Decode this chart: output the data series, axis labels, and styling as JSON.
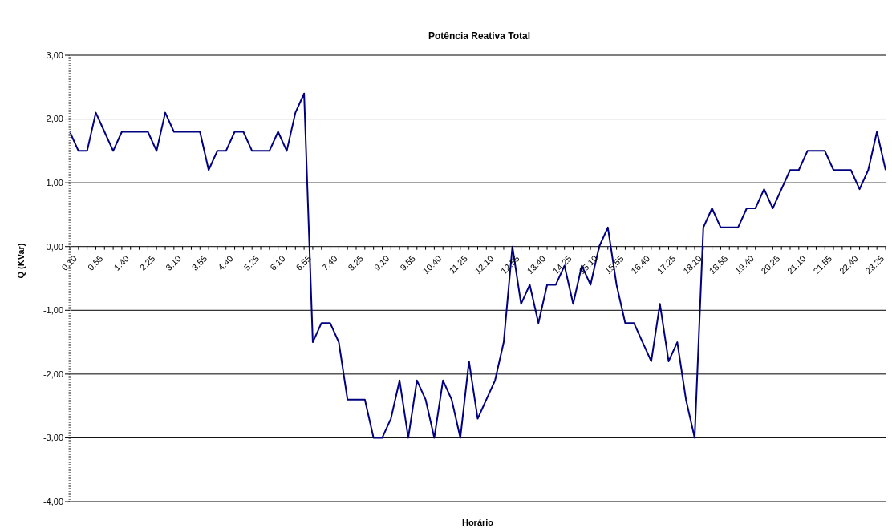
{
  "chart_data": {
    "type": "line",
    "title": "Potência Reativa Total",
    "xlabel": "Horário",
    "ylabel": "Q (KVar)",
    "categories": [
      "0:10",
      null,
      null,
      "0:55",
      null,
      null,
      "1:40",
      null,
      null,
      "2:25",
      null,
      null,
      "3:10",
      null,
      null,
      "3:55",
      null,
      null,
      "4:40",
      null,
      null,
      "5:25",
      null,
      null,
      "6:10",
      null,
      null,
      "6:55",
      null,
      null,
      "7:40",
      null,
      null,
      "8:25",
      null,
      null,
      "9:10",
      null,
      null,
      "9:55",
      null,
      null,
      "10:40",
      null,
      null,
      "11:25",
      null,
      null,
      "12:10",
      null,
      null,
      "12:55",
      null,
      null,
      "13:40",
      null,
      null,
      "14:25",
      null,
      null,
      "15:10",
      null,
      null,
      "15:55",
      null,
      null,
      "16:40",
      null,
      null,
      "17:25",
      null,
      null,
      "18:10",
      null,
      null,
      "18:55",
      null,
      null,
      "19:40",
      null,
      null,
      "20:25",
      null,
      null,
      "21:10",
      null,
      null,
      "21:55",
      null,
      null,
      "22:40",
      null,
      null,
      "23:25",
      null
    ],
    "values": [
      1.8,
      1.5,
      1.5,
      2.1,
      1.8,
      1.5,
      1.8,
      1.8,
      1.8,
      1.8,
      1.5,
      2.1,
      1.8,
      1.8,
      1.8,
      1.8,
      1.2,
      1.5,
      1.5,
      1.8,
      1.8,
      1.5,
      1.5,
      1.5,
      1.8,
      1.5,
      2.1,
      2.4,
      -1.5,
      -1.2,
      -1.2,
      -1.5,
      -2.4,
      -2.4,
      -2.4,
      -3.0,
      -3.0,
      -2.7,
      -2.1,
      -3.0,
      -2.1,
      -2.4,
      -3.0,
      -2.1,
      -2.4,
      -3.0,
      -1.8,
      -2.7,
      -2.4,
      -2.1,
      -1.5,
      0.0,
      -0.9,
      -0.6,
      -1.2,
      -0.6,
      -0.6,
      -0.3,
      -0.9,
      -0.3,
      -0.6,
      0.0,
      0.3,
      -0.6,
      -1.2,
      -1.2,
      -1.5,
      -1.8,
      -0.9,
      -1.8,
      -1.5,
      -2.4,
      -3.0,
      0.3,
      0.6,
      0.3,
      0.3,
      0.3,
      0.6,
      0.6,
      0.9,
      0.6,
      0.9,
      1.2,
      1.2,
      1.5,
      1.5,
      1.5,
      1.2,
      1.2,
      1.2,
      0.9,
      1.2,
      1.8,
      1.2
    ],
    "color": "#000080",
    "ylim": [
      -4,
      3
    ],
    "yticks": [
      {
        "value": -4,
        "label": "-4,00"
      },
      {
        "value": -3,
        "label": "-3,00"
      },
      {
        "value": -2,
        "label": "-2,00"
      },
      {
        "value": -1,
        "label": "-1,00"
      },
      {
        "value": 0,
        "label": "0,00"
      },
      {
        "value": 1,
        "label": "1,00"
      },
      {
        "value": 2,
        "label": "2,00"
      },
      {
        "value": 3,
        "label": "3,00"
      }
    ],
    "grid": "y"
  }
}
